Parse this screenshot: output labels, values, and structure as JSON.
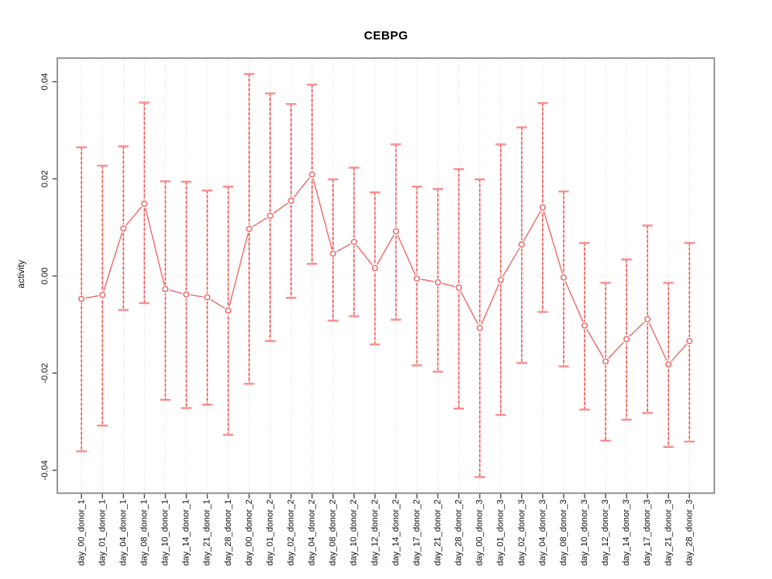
{
  "chart_data": {
    "type": "line",
    "variant": "points-with-error-bars",
    "title": "CEBPG",
    "ylabel": "activity",
    "xlabel": "",
    "legend": "none",
    "categories": [
      "day_00_donor_1",
      "day_01_donor_1",
      "day_04_donor_1",
      "day_08_donor_1",
      "day_10_donor_1",
      "day_14_donor_1",
      "day_21_donor_1",
      "day_28_donor_1",
      "day_00_donor_2",
      "day_01_donor_2",
      "day_02_donor_2",
      "day_04_donor_2",
      "day_08_donor_2",
      "day_10_donor_2",
      "day_12_donor_2",
      "day_14_donor_2",
      "day_17_donor_2",
      "day_21_donor_2",
      "day_28_donor_2",
      "day_00_donor_3",
      "day_01_donor_3",
      "day_02_donor_3",
      "day_04_donor_3",
      "day_08_donor_3",
      "day_10_donor_3",
      "day_12_donor_3",
      "day_14_donor_3",
      "day_17_donor_3",
      "day_21_donor_3",
      "day_28_donor_3"
    ],
    "series": [
      {
        "name": "CEBPG activity",
        "values": [
          -0.0047,
          -0.0039,
          0.0098,
          0.0149,
          -0.0027,
          -0.0038,
          -0.0044,
          -0.0071,
          0.0097,
          0.0124,
          0.0155,
          0.0209,
          0.0046,
          0.007,
          0.0016,
          0.0092,
          -0.0005,
          -0.0013,
          -0.0024,
          -0.0107,
          -0.0008,
          0.0065,
          0.0141,
          -0.0003,
          -0.0102,
          -0.0176,
          -0.013,
          -0.0089,
          -0.0182,
          -0.0134
        ],
        "err_high": [
          0.0265,
          0.0227,
          0.0267,
          0.0357,
          0.0195,
          0.0194,
          0.0176,
          0.0184,
          0.0416,
          0.0376,
          0.0354,
          0.0394,
          0.0199,
          0.0223,
          0.0172,
          0.0271,
          0.0184,
          0.0179,
          0.022,
          0.0199,
          0.0271,
          0.0306,
          0.0356,
          0.0174,
          0.0068,
          -0.0014,
          0.0034,
          0.0104,
          -0.0014,
          0.0068
        ],
        "err_low": [
          -0.0361,
          -0.0308,
          -0.007,
          -0.0056,
          -0.0255,
          -0.0272,
          -0.0265,
          -0.0327,
          -0.0222,
          -0.0134,
          -0.0045,
          0.0025,
          -0.0092,
          -0.0083,
          -0.0141,
          -0.009,
          -0.0184,
          -0.0197,
          -0.0273,
          -0.0414,
          -0.0286,
          -0.0179,
          -0.0074,
          -0.0186,
          -0.0275,
          -0.0339,
          -0.0296,
          -0.0282,
          -0.0352,
          -0.0341
        ]
      }
    ],
    "yticks": [
      -0.04,
      -0.02,
      0,
      0.02,
      0.04
    ],
    "ytick_labels": [
      "-0.04",
      "-0.02",
      "0.00",
      "0.02",
      "0.04"
    ],
    "ylim": [
      -0.0447,
      0.0449
    ],
    "grid": {
      "vertical_dotted_per_category": true,
      "horizontal_zero_line_dotted": true
    },
    "colors": {
      "series": "#f25f5f",
      "error_bar_dash": "#e64f4f",
      "error_bar_light": "#ffb0b0",
      "cap": "#fb8e8e",
      "grid": "#cfcfcf",
      "zero_line": "#dcdcdc",
      "axis_border": "#8a8a8a",
      "tick": "#4a4a4a",
      "text": "#111111"
    }
  }
}
